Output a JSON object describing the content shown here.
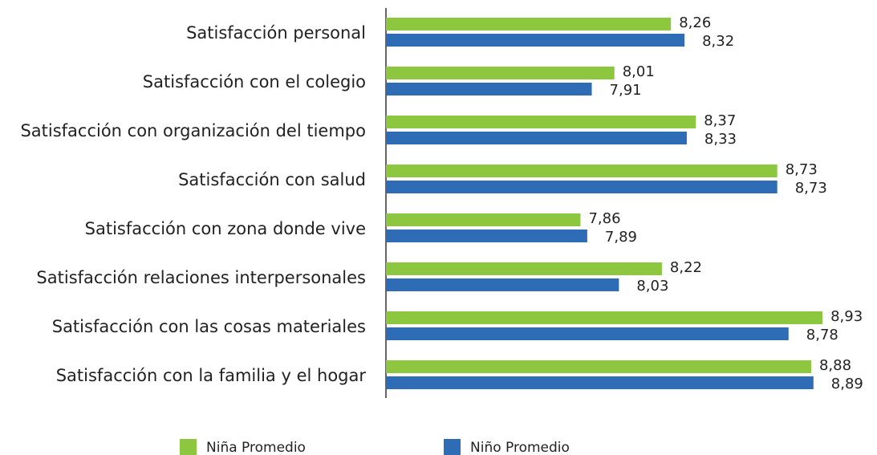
{
  "chart_data": {
    "type": "hbar",
    "categories": [
      "Satisfacción personal",
      "Satisfacción con el colegio",
      "Satisfacción con organización del tiempo",
      "Satisfacción con salud",
      "Satisfacción con zona donde vive",
      "Satisfacción relaciones interpersonales",
      "Satisfacción con las cosas materiales",
      "Satisfacción con la familia y el hogar"
    ],
    "series": [
      {
        "name": "Niña Promedio",
        "color": "#8dc63f",
        "values": [
          8.26,
          8.01,
          8.37,
          8.73,
          7.86,
          8.22,
          8.93,
          8.88
        ],
        "value_labels": [
          "8,26",
          "8,01",
          "8,37",
          "8,73",
          "7,86",
          "8,22",
          "8,93",
          "8,88"
        ]
      },
      {
        "name": "Niño Promedio",
        "color": "#2e6db5",
        "values": [
          8.32,
          7.91,
          8.33,
          8.73,
          7.89,
          8.03,
          8.78,
          8.89
        ],
        "value_labels": [
          "8,32",
          "7,91",
          "8,33",
          "8,73",
          "7,89",
          "8,03",
          "8,78",
          "8,89"
        ]
      }
    ],
    "xlim": [
      7,
      9.1
    ],
    "legend": "bottom"
  }
}
